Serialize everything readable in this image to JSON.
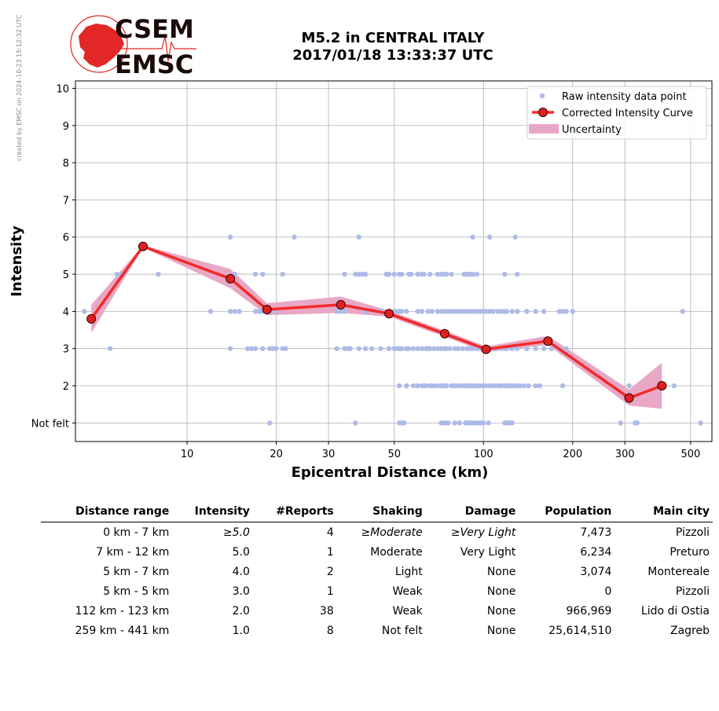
{
  "credit": "created by EMSC on 2024-10-23 15:12:32 UTC",
  "logo": {
    "line1": "CSEM",
    "line2": "EMSC",
    "color": "#e32626"
  },
  "title": {
    "line1": "M5.2 in CENTRAL ITALY",
    "line2": "2017/01/18 13:33:37 UTC"
  },
  "chart_data": {
    "type": "scatter",
    "xlabel": "Epicentral Distance (km)",
    "ylabel": "Intensity",
    "xscale": "log",
    "xlim": [
      4.2,
      590
    ],
    "ylim": [
      0.5,
      10.2
    ],
    "xticks": [
      10,
      20,
      30,
      50,
      100,
      200,
      300,
      500
    ],
    "yticks": [
      1,
      2,
      3,
      4,
      5,
      6,
      7,
      8,
      9,
      10
    ],
    "ytick_labels": [
      "Not felt",
      "2",
      "3",
      "4",
      "5",
      "6",
      "7",
      "8",
      "9",
      "10"
    ],
    "grid": true,
    "legend": {
      "position": "top-right",
      "entries": [
        "Raw intensity data point",
        "Corrected Intensity Curve",
        "Uncertainty"
      ]
    },
    "colors": {
      "raw": "#aebbe8",
      "curve": "#f22a2a",
      "marker": "#e02020",
      "band": "#e8a7c4"
    },
    "raw_points": {
      "i1": [
        19,
        37,
        52,
        53,
        54,
        72,
        74,
        75,
        76,
        80,
        83,
        87,
        88,
        89,
        90,
        91,
        92,
        94,
        96,
        98,
        100,
        104,
        118,
        120,
        122,
        124,
        125,
        290,
        325,
        330,
        540
      ],
      "i2": [
        52,
        55,
        58,
        60,
        62,
        63,
        64,
        66,
        67,
        68,
        70,
        72,
        73,
        74,
        75,
        78,
        80,
        82,
        84,
        86,
        87,
        88,
        89,
        90,
        92,
        94,
        96,
        98,
        100,
        102,
        105,
        108,
        110,
        113,
        115,
        118,
        120,
        122,
        125,
        128,
        130,
        133,
        137,
        142,
        150,
        155,
        185,
        310,
        440
      ],
      "i3": [
        5.5,
        14,
        16,
        16.5,
        17,
        18,
        19,
        19.5,
        20,
        21,
        21.5,
        32,
        34,
        35,
        35.5,
        38,
        40,
        42,
        45,
        48,
        50,
        51,
        52,
        53,
        55,
        56,
        58,
        60,
        62,
        64,
        65,
        66,
        68,
        70,
        72,
        74,
        75,
        77,
        80,
        82,
        85,
        88,
        90,
        92,
        95,
        98,
        100,
        103,
        106,
        110,
        115,
        118,
        120,
        125,
        130,
        140,
        150,
        160,
        170,
        180,
        190
      ],
      "i4": [
        4.5,
        12,
        14,
        14.5,
        15,
        17,
        17.5,
        18,
        18.5,
        19,
        20,
        32,
        33,
        34,
        40,
        45,
        48,
        50,
        51,
        52,
        53,
        55,
        60,
        62,
        65,
        67,
        70,
        72,
        74,
        76,
        78,
        80,
        82,
        84,
        86,
        88,
        90,
        92,
        94,
        96,
        98,
        100,
        102,
        105,
        108,
        112,
        115,
        118,
        120,
        125,
        130,
        140,
        150,
        160,
        180,
        185,
        190,
        200,
        470
      ],
      "i5": [
        5.8,
        6,
        8,
        14.5,
        17,
        18,
        21,
        34,
        37,
        38,
        39,
        40,
        47,
        48,
        50,
        52,
        53,
        56,
        57,
        60,
        62,
        63,
        66,
        70,
        72,
        73,
        75,
        78,
        86,
        88,
        90,
        92,
        95,
        118,
        130
      ],
      "i6": [
        14,
        23,
        38,
        92,
        105,
        128
      ]
    },
    "curve": {
      "x": [
        4.75,
        7.1,
        14,
        18.6,
        33,
        48,
        74,
        102,
        165,
        310,
        400
      ],
      "y": [
        3.8,
        5.75,
        4.88,
        4.05,
        4.18,
        3.94,
        3.4,
        2.98,
        3.2,
        1.67,
        2.0
      ],
      "lower": [
        3.42,
        5.72,
        4.62,
        3.9,
        3.96,
        3.86,
        3.32,
        2.9,
        3.1,
        1.47,
        1.38
      ],
      "upper": [
        4.18,
        5.78,
        5.14,
        4.22,
        4.4,
        4.02,
        3.48,
        3.06,
        3.34,
        1.9,
        2.62
      ]
    }
  },
  "table": {
    "columns": [
      "Distance range",
      "Intensity",
      "#Reports",
      "Shaking",
      "Damage",
      "Population",
      "Main city"
    ],
    "rows": [
      {
        "range": "0 km -    7 km",
        "intensity": "≥5.0",
        "reports": "4",
        "shaking": "≥Moderate",
        "damage": "≥Very Light",
        "population": "7,473",
        "city": "Pizzoli",
        "italic": true
      },
      {
        "range": "7 km -   12 km",
        "intensity": "5.0",
        "reports": "1",
        "shaking": "Moderate",
        "damage": "Very Light",
        "population": "6,234",
        "city": "Preturo",
        "italic": false
      },
      {
        "range": "5 km -    7 km",
        "intensity": "4.0",
        "reports": "2",
        "shaking": "Light",
        "damage": "None",
        "population": "3,074",
        "city": "Montereale",
        "italic": false
      },
      {
        "range": "5 km -    5 km",
        "intensity": "3.0",
        "reports": "1",
        "shaking": "Weak",
        "damage": "None",
        "population": "0",
        "city": "Pizzoli",
        "italic": false
      },
      {
        "range": "112 km -  123 km",
        "intensity": "2.0",
        "reports": "38",
        "shaking": "Weak",
        "damage": "None",
        "population": "966,969",
        "city": "Lido di Ostia",
        "italic": false
      },
      {
        "range": "259 km -  441 km",
        "intensity": "1.0",
        "reports": "8",
        "shaking": "Not felt",
        "damage": "None",
        "population": "25,614,510",
        "city": "Zagreb",
        "italic": false
      }
    ]
  }
}
